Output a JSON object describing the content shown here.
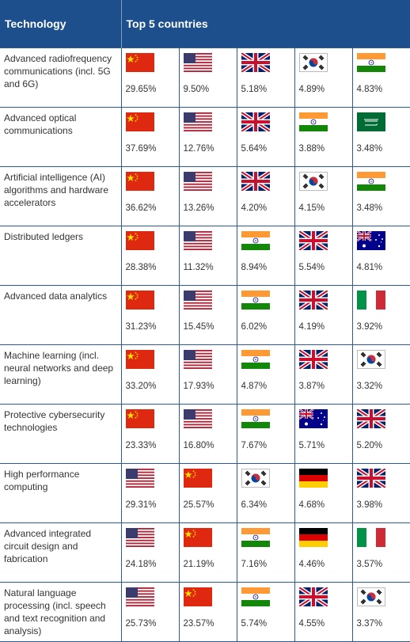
{
  "header": {
    "col1": "Technology",
    "col2": "Top 5 countries"
  },
  "rows": [
    {
      "tech": "Advanced radiofrequency communications (incl. 5G and 6G)",
      "countries": [
        {
          "flag": "china-flag-icon",
          "pct": "29.65%"
        },
        {
          "flag": "usa-flag-icon",
          "pct": "9.50%"
        },
        {
          "flag": "uk-flag-icon",
          "pct": "5.18%"
        },
        {
          "flag": "south-korea-flag-icon",
          "pct": "4.89%"
        },
        {
          "flag": "india-flag-icon",
          "pct": "4.83%"
        }
      ]
    },
    {
      "tech": "Advanced optical communications",
      "countries": [
        {
          "flag": "china-flag-icon",
          "pct": "37.69%"
        },
        {
          "flag": "usa-flag-icon",
          "pct": "12.76%"
        },
        {
          "flag": "uk-flag-icon",
          "pct": "5.64%"
        },
        {
          "flag": "india-flag-icon",
          "pct": "3.88%"
        },
        {
          "flag": "saudi-arabia-flag-icon",
          "pct": "3.48%"
        }
      ]
    },
    {
      "tech": "Artificial intelligence (AI) algorithms and hardware accelerators",
      "countries": [
        {
          "flag": "china-flag-icon",
          "pct": "36.62%"
        },
        {
          "flag": "usa-flag-icon",
          "pct": "13.26%"
        },
        {
          "flag": "uk-flag-icon",
          "pct": "4.20%"
        },
        {
          "flag": "south-korea-flag-icon",
          "pct": "4.15%"
        },
        {
          "flag": "india-flag-icon",
          "pct": "3.48%"
        }
      ]
    },
    {
      "tech": "Distributed ledgers",
      "countries": [
        {
          "flag": "china-flag-icon",
          "pct": "28.38%"
        },
        {
          "flag": "usa-flag-icon",
          "pct": "11.32%"
        },
        {
          "flag": "india-flag-icon",
          "pct": "8.94%"
        },
        {
          "flag": "uk-flag-icon",
          "pct": "5.54%"
        },
        {
          "flag": "australia-flag-icon",
          "pct": "4.81%"
        }
      ]
    },
    {
      "tech": "Advanced data analytics",
      "countries": [
        {
          "flag": "china-flag-icon",
          "pct": "31.23%"
        },
        {
          "flag": "usa-flag-icon",
          "pct": "15.45%"
        },
        {
          "flag": "india-flag-icon",
          "pct": "6.02%"
        },
        {
          "flag": "uk-flag-icon",
          "pct": "4.19%"
        },
        {
          "flag": "italy-flag-icon",
          "pct": "3.92%"
        }
      ]
    },
    {
      "tech": "Machine learning (incl. neural networks and deep learning)",
      "countries": [
        {
          "flag": "china-flag-icon",
          "pct": "33.20%"
        },
        {
          "flag": "usa-flag-icon",
          "pct": "17.93%"
        },
        {
          "flag": "india-flag-icon",
          "pct": "4.87%"
        },
        {
          "flag": "uk-flag-icon",
          "pct": "3.87%"
        },
        {
          "flag": "south-korea-flag-icon",
          "pct": "3.32%"
        }
      ]
    },
    {
      "tech": "Protective cybersecurity technologies",
      "countries": [
        {
          "flag": "china-flag-icon",
          "pct": "23.33%"
        },
        {
          "flag": "usa-flag-icon",
          "pct": "16.80%"
        },
        {
          "flag": "india-flag-icon",
          "pct": "7.67%"
        },
        {
          "flag": "australia-flag-icon",
          "pct": "5.71%"
        },
        {
          "flag": "uk-flag-icon",
          "pct": "5.20%"
        }
      ]
    },
    {
      "tech": "High performance computing",
      "countries": [
        {
          "flag": "usa-flag-icon",
          "pct": "29.31%"
        },
        {
          "flag": "china-flag-icon",
          "pct": "25.57%"
        },
        {
          "flag": "south-korea-flag-icon",
          "pct": "6.34%"
        },
        {
          "flag": "germany-flag-icon",
          "pct": "4.68%"
        },
        {
          "flag": "uk-flag-icon",
          "pct": "3.98%"
        }
      ]
    },
    {
      "tech": "Advanced integrated circuit design and fabrication",
      "countries": [
        {
          "flag": "usa-flag-icon",
          "pct": "24.18%"
        },
        {
          "flag": "china-flag-icon",
          "pct": "21.19%"
        },
        {
          "flag": "india-flag-icon",
          "pct": "7.16%"
        },
        {
          "flag": "germany-flag-icon",
          "pct": "4.46%"
        },
        {
          "flag": "italy-flag-icon",
          "pct": "3.57%"
        }
      ]
    },
    {
      "tech": "Natural language processing (incl. speech and text recognition and analysis)",
      "countries": [
        {
          "flag": "usa-flag-icon",
          "pct": "25.73%"
        },
        {
          "flag": "china-flag-icon",
          "pct": "23.57%"
        },
        {
          "flag": "india-flag-icon",
          "pct": "5.74%"
        },
        {
          "flag": "uk-flag-icon",
          "pct": "4.55%"
        },
        {
          "flag": "south-korea-flag-icon",
          "pct": "3.37%"
        }
      ]
    }
  ]
}
